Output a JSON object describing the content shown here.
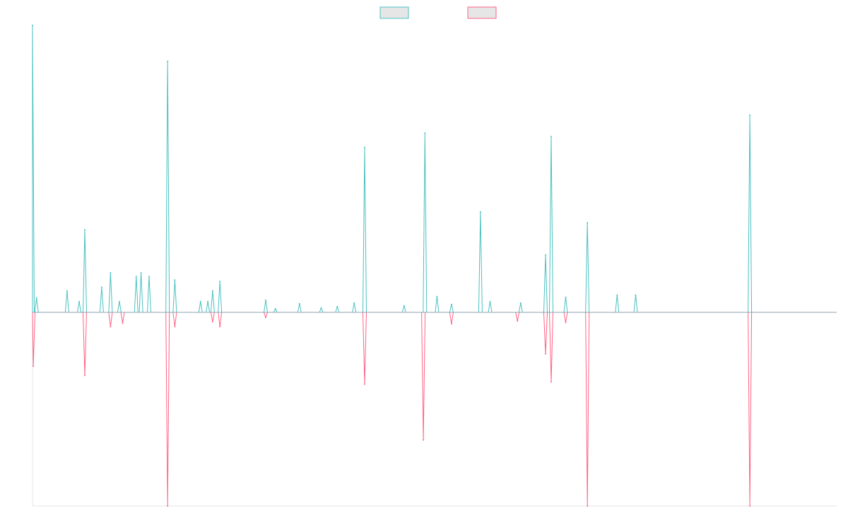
{
  "colors": {
    "background": "#ffffff",
    "series_a": "#4bc0c0",
    "series_b": "#ff6384",
    "legend_fill": "#e6e6e6",
    "axis": "#e5e5e5",
    "baseline": "#8ca0b0"
  },
  "legend": {
    "position": "top-center",
    "items": [
      {
        "label": "",
        "color": "#4bc0c0"
      },
      {
        "label": "",
        "color": "#ff6384"
      }
    ]
  },
  "chart_data": {
    "type": "line",
    "title": "",
    "xlabel": "",
    "ylabel": "",
    "xlim": [
      0,
      100
    ],
    "ylim": [
      -27,
      40
    ],
    "grid": false,
    "series": [
      {
        "color": "#4bc0c0",
        "points": [
          {
            "x": 0.0,
            "y": 40
          },
          {
            "x": 0.5,
            "y": 2
          },
          {
            "x": 4.3,
            "y": 3
          },
          {
            "x": 5.8,
            "y": 1.5
          },
          {
            "x": 6.5,
            "y": 11.5
          },
          {
            "x": 8.6,
            "y": 3.5
          },
          {
            "x": 9.7,
            "y": 5.5
          },
          {
            "x": 10.8,
            "y": 1.5
          },
          {
            "x": 12.9,
            "y": 5
          },
          {
            "x": 13.5,
            "y": 5.5
          },
          {
            "x": 14.5,
            "y": 5
          },
          {
            "x": 16.8,
            "y": 35
          },
          {
            "x": 17.7,
            "y": 4.5
          },
          {
            "x": 20.9,
            "y": 1.5
          },
          {
            "x": 21.8,
            "y": 1.5
          },
          {
            "x": 22.4,
            "y": 3
          },
          {
            "x": 23.3,
            "y": 4.3
          },
          {
            "x": 29.0,
            "y": 1.7
          },
          {
            "x": 30.2,
            "y": 0.5
          },
          {
            "x": 33.2,
            "y": 1.2
          },
          {
            "x": 35.9,
            "y": 0.6
          },
          {
            "x": 37.9,
            "y": 0.8
          },
          {
            "x": 40.0,
            "y": 1.3
          },
          {
            "x": 41.3,
            "y": 23
          },
          {
            "x": 46.2,
            "y": 0.9
          },
          {
            "x": 48.8,
            "y": 25
          },
          {
            "x": 50.3,
            "y": 2.2
          },
          {
            "x": 52.1,
            "y": 1.1
          },
          {
            "x": 55.7,
            "y": 14
          },
          {
            "x": 56.9,
            "y": 1.5
          },
          {
            "x": 60.7,
            "y": 1.3
          },
          {
            "x": 63.8,
            "y": 8
          },
          {
            "x": 64.5,
            "y": 24.5
          },
          {
            "x": 66.3,
            "y": 2.1
          },
          {
            "x": 69.0,
            "y": 12.5
          },
          {
            "x": 72.7,
            "y": 2.4
          },
          {
            "x": 75.0,
            "y": 2.4
          },
          {
            "x": 89.2,
            "y": 27.5
          }
        ]
      },
      {
        "color": "#ff6384",
        "points": [
          {
            "x": 0.1,
            "y": -7.5
          },
          {
            "x": 6.5,
            "y": -8.8
          },
          {
            "x": 9.7,
            "y": -2
          },
          {
            "x": 11.2,
            "y": -1.5
          },
          {
            "x": 16.8,
            "y": -27
          },
          {
            "x": 17.7,
            "y": -2
          },
          {
            "x": 22.4,
            "y": -1.3
          },
          {
            "x": 23.3,
            "y": -2
          },
          {
            "x": 29.0,
            "y": -0.7
          },
          {
            "x": 41.3,
            "y": -10
          },
          {
            "x": 48.6,
            "y": -17.8
          },
          {
            "x": 52.1,
            "y": -1.6
          },
          {
            "x": 60.3,
            "y": -1.2
          },
          {
            "x": 63.8,
            "y": -5.8
          },
          {
            "x": 64.5,
            "y": -9.7
          },
          {
            "x": 66.3,
            "y": -1.4
          },
          {
            "x": 69.0,
            "y": -27
          },
          {
            "x": 89.2,
            "y": -27
          }
        ]
      }
    ]
  }
}
